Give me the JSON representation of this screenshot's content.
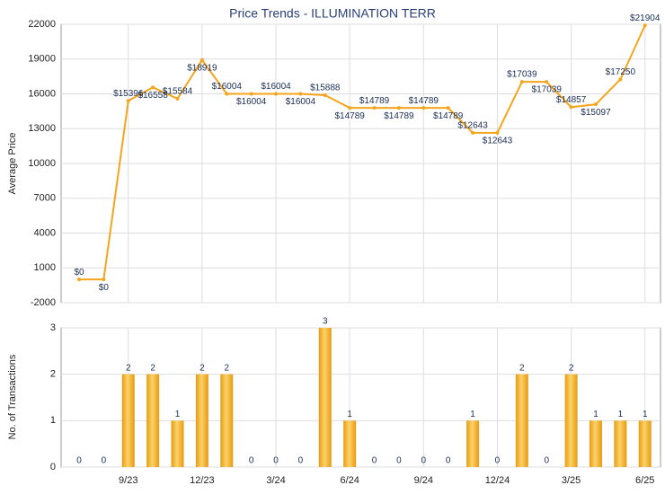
{
  "chart_data": [
    {
      "type": "line",
      "title": "Price Trends - ILLUMINATION TERR",
      "y_label": "Average Price",
      "color": "#f5a41c",
      "values": [
        0,
        0,
        15396,
        16558,
        15584,
        18919,
        16004,
        16004,
        16004,
        16004,
        15888,
        14789,
        14789,
        14789,
        14789,
        14789,
        12643,
        12643,
        17039,
        17039,
        14857,
        15097,
        17250,
        21904
      ],
      "value_labels": [
        "$0",
        "$0",
        "$15396",
        "$16558",
        "$15584",
        "$18919",
        "$16004",
        "$16004",
        "$16004",
        "$16004",
        "$15888",
        "$14789",
        "$14789",
        "$14789",
        "$14789",
        "$14789",
        "$12643",
        "$12643",
        "$17039",
        "$17039",
        "$14857",
        "$15097",
        "$17250",
        "$21904"
      ],
      "ylim": [
        -2000,
        22000
      ],
      "yticks": [
        -2000,
        1000,
        4000,
        7000,
        10000,
        13000,
        16000,
        19000,
        22000
      ],
      "grid": true
    },
    {
      "type": "bar",
      "y_label": "No. of Transactions",
      "color": "#f5a41c",
      "categories": [
        null,
        null,
        "9/23",
        null,
        null,
        "12/23",
        null,
        null,
        "3/24",
        null,
        null,
        "6/24",
        null,
        null,
        "9/24",
        null,
        null,
        "12/24",
        null,
        null,
        "3/25",
        null,
        null,
        "6/25"
      ],
      "values": [
        0,
        0,
        2,
        2,
        1,
        2,
        2,
        0,
        0,
        0,
        3,
        1,
        0,
        0,
        0,
        0,
        1,
        0,
        2,
        0,
        2,
        1,
        1,
        1
      ],
      "ylim": [
        0,
        3
      ],
      "yticks": [
        0,
        1,
        2,
        3
      ],
      "grid": true
    }
  ]
}
